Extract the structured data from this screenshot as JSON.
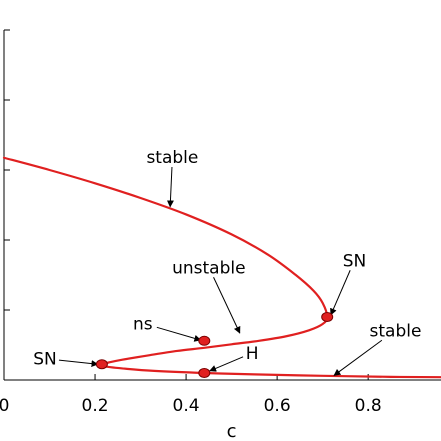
{
  "chart_data": {
    "type": "line",
    "title": "",
    "xlabel": "c",
    "ylabel": "",
    "xlim": [
      0.0,
      0.96
    ],
    "ylim": [
      0.0,
      1.0
    ],
    "grid": false,
    "x_ticks": [
      0,
      0.2,
      0.4,
      0.6,
      0.8
    ],
    "x_tick_labels": [
      "0",
      "0.2",
      "0.4",
      "0.6",
      "0.8"
    ],
    "y_ticks": [
      0.0,
      0.2,
      0.4,
      0.6,
      0.8,
      1.0
    ],
    "series": [
      {
        "color": "#e02020",
        "x": [
          0.0,
          0.1,
          0.2,
          0.3,
          0.4,
          0.5,
          0.58,
          0.64,
          0.68,
          0.7,
          0.71,
          0.7,
          0.67,
          0.62,
          0.56,
          0.5,
          0.44,
          0.38,
          0.32,
          0.26,
          0.23,
          0.215,
          0.22,
          0.26,
          0.33,
          0.44,
          0.55,
          0.7,
          0.85,
          0.96
        ],
        "y": [
          0.635,
          0.6,
          0.562,
          0.52,
          0.473,
          0.416,
          0.358,
          0.301,
          0.255,
          0.22,
          0.18,
          0.16,
          0.142,
          0.125,
          0.112,
          0.102,
          0.092,
          0.083,
          0.071,
          0.058,
          0.05,
          0.045,
          0.039,
          0.033,
          0.026,
          0.02,
          0.016,
          0.012,
          0.009,
          0.008
        ]
      }
    ],
    "points": [
      {
        "x": 0.71,
        "y": 0.18,
        "label": "SN"
      },
      {
        "x": 0.44,
        "y": 0.112,
        "label": "ns"
      },
      {
        "x": 0.215,
        "y": 0.045,
        "label": "SN"
      },
      {
        "x": 0.44,
        "y": 0.02,
        "label": "H"
      }
    ],
    "annotations": [
      {
        "text": "stable",
        "text_x": 0.37,
        "text_y": 0.62,
        "arrow_x": 0.365,
        "arrow_y": 0.495
      },
      {
        "text": "SN",
        "text_x": 0.77,
        "text_y": 0.325,
        "arrow_x": 0.718,
        "arrow_y": 0.186
      },
      {
        "text": "unstable",
        "text_x": 0.45,
        "text_y": 0.305,
        "arrow_x": 0.518,
        "arrow_y": 0.134
      },
      {
        "text": "ns",
        "text_x": 0.305,
        "text_y": 0.145,
        "arrow_x": 0.432,
        "arrow_y": 0.114
      },
      {
        "text": "SN",
        "text_x": 0.09,
        "text_y": 0.044,
        "arrow_x": 0.206,
        "arrow_y": 0.045
      },
      {
        "text": "H",
        "text_x": 0.545,
        "text_y": 0.06,
        "arrow_x": 0.452,
        "arrow_y": 0.026
      },
      {
        "text": "stable",
        "text_x": 0.86,
        "text_y": 0.125,
        "arrow_x": 0.725,
        "arrow_y": 0.013
      }
    ]
  }
}
